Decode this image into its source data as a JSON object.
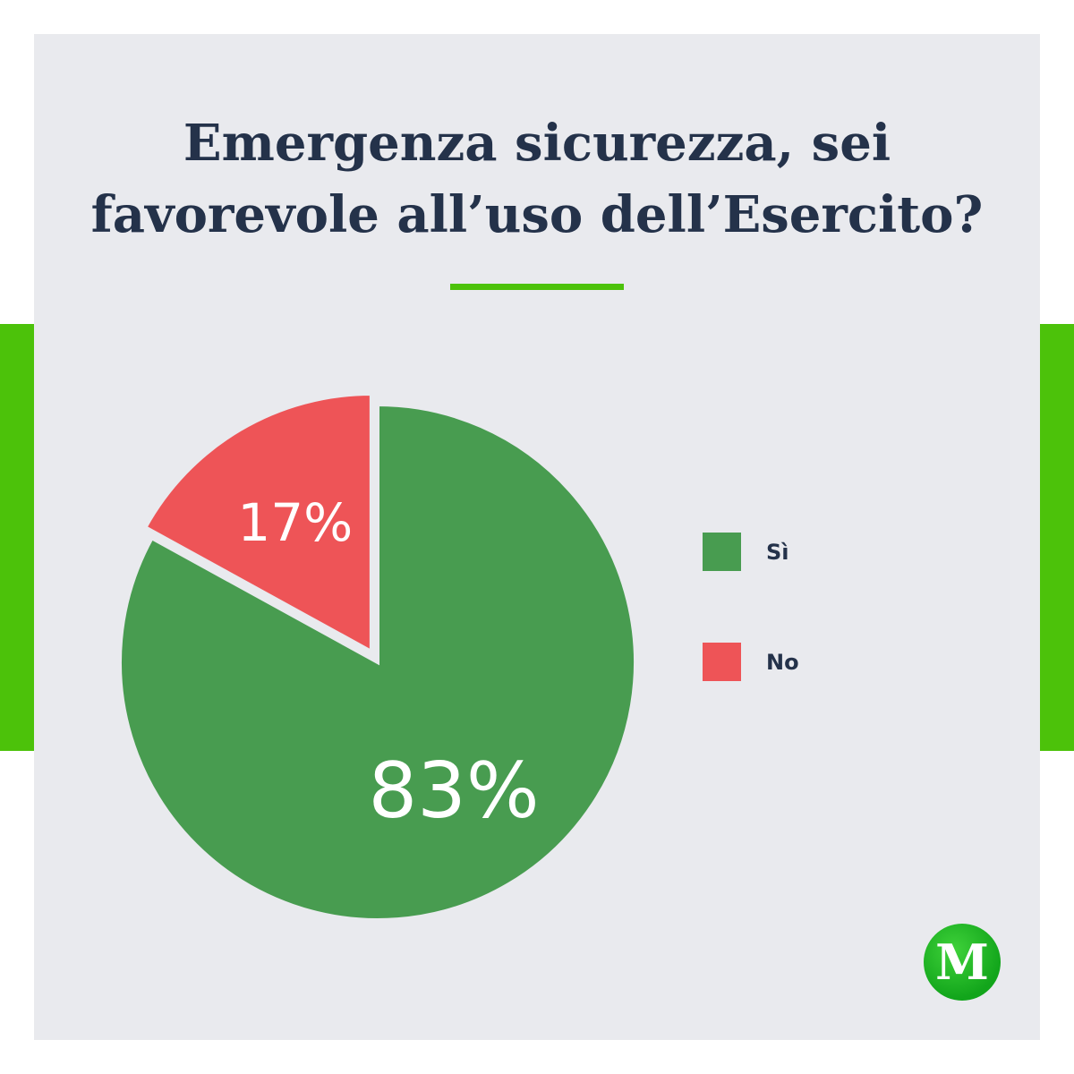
{
  "colors": {
    "accent": "#4cc20a",
    "panel": "#e9eaee",
    "title": "#24324a"
  },
  "chart_data": {
    "type": "pie",
    "title": "Emergenza sicurezza, sei favorevole all’uso dell’Esercito?",
    "title_lines": [
      "Emergenza sicurezza, sei",
      "favorevole all’uso dell’Esercito?"
    ],
    "slices": [
      {
        "label": "Sì",
        "value": 83,
        "value_label": "83%",
        "color": "#489c50"
      },
      {
        "label": "No",
        "value": 17,
        "value_label": "17%",
        "color": "#ee5457"
      }
    ],
    "legend_placement": "right"
  },
  "logo": {
    "letter": "M",
    "icon": "m-logo-icon"
  }
}
